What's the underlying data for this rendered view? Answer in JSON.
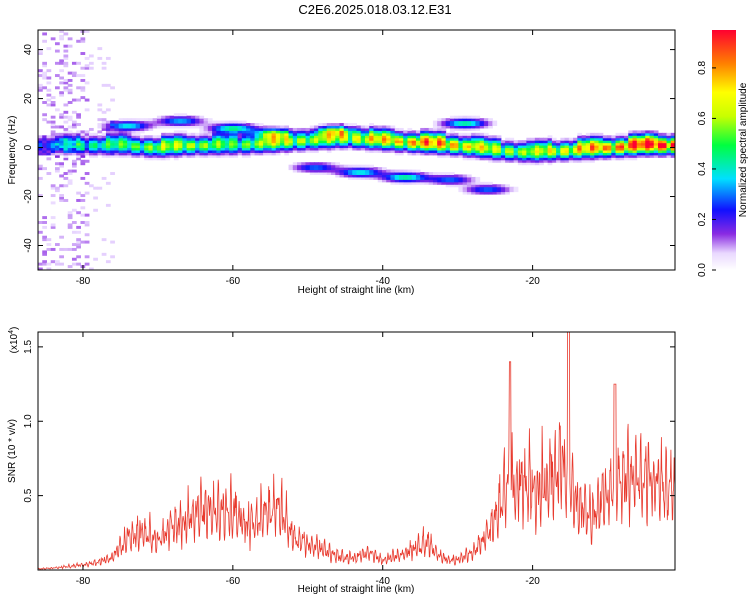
{
  "page_title": "C2E6.2025.018.03.12.E31",
  "chart_data": [
    {
      "type": "heatmap",
      "xlabel": "Height of straight line (km)",
      "ylabel": "Frequency (Hz)",
      "xlim": [
        -86,
        -1
      ],
      "ylim": [
        -50,
        48
      ],
      "xticks": [
        -80,
        -60,
        -40,
        -20
      ],
      "xtick_labels": [
        "-80",
        "-60",
        "-40",
        "-20"
      ],
      "yticks": [
        -40,
        -20,
        0,
        20,
        40
      ],
      "ytick_labels": [
        "-40",
        "-20",
        "0",
        "20",
        "40"
      ],
      "colorbar": {
        "label": "Normalized spectral amplitude",
        "range": [
          0,
          0.95
        ],
        "ticks": [
          0.0,
          0.2,
          0.4,
          0.6,
          0.8
        ],
        "tick_labels": [
          "0.0",
          "0.2",
          "0.4",
          "0.6",
          "0.8"
        ]
      },
      "ridge": {
        "x": [
          -85,
          -80,
          -75,
          -70,
          -65,
          -60,
          -55,
          -50,
          -45,
          -40,
          -35,
          -30,
          -25,
          -20,
          -15,
          -10,
          -5,
          -1
        ],
        "y": [
          1,
          1,
          1,
          0,
          1,
          1,
          2,
          3,
          4,
          3,
          2,
          1,
          -1,
          -2,
          -1,
          0,
          1,
          1
        ],
        "amplitude": [
          0.25,
          0.4,
          0.45,
          0.55,
          0.55,
          0.45,
          0.6,
          0.55,
          0.6,
          0.65,
          0.75,
          0.7,
          0.55,
          0.55,
          0.65,
          0.75,
          0.85,
          0.9
        ]
      },
      "features": [
        {
          "x": -74,
          "y": 9,
          "amp": 0.4
        },
        {
          "x": -67,
          "y": 11,
          "amp": 0.35
        },
        {
          "x": -60,
          "y": 8,
          "amp": 0.45
        },
        {
          "x": -55,
          "y": 6,
          "amp": 0.35
        },
        {
          "x": -49,
          "y": -8,
          "amp": 0.3
        },
        {
          "x": -43,
          "y": -10,
          "amp": 0.4
        },
        {
          "x": -37,
          "y": -12,
          "amp": 0.45
        },
        {
          "x": -31,
          "y": -13,
          "amp": 0.3
        },
        {
          "x": -26,
          "y": -17,
          "amp": 0.3
        },
        {
          "x": -29,
          "y": 10,
          "amp": 0.45
        },
        {
          "x": -46,
          "y": 7,
          "amp": 0.3
        }
      ]
    },
    {
      "type": "line",
      "xlabel": "Height of straight line (km)",
      "ylabel": "SNR (10 * v/v)",
      "y_multiplier": "(x10",
      "y_multiplier_exp": "4",
      "y_multiplier_close": ")",
      "xlim": [
        -86,
        -1
      ],
      "ylim": [
        0,
        1.6
      ],
      "xticks": [
        -80,
        -60,
        -40,
        -20
      ],
      "xtick_labels": [
        "-80",
        "-60",
        "-40",
        "-20"
      ],
      "yticks": [
        0.5,
        1.0,
        1.5
      ],
      "ytick_labels": [
        "0.5",
        "1.0",
        "1.5"
      ],
      "color": "#e83a2e",
      "envelope": {
        "x": [
          -86,
          -84,
          -80,
          -78,
          -76,
          -74,
          -72,
          -70,
          -68,
          -66,
          -64,
          -62,
          -60,
          -58,
          -56,
          -54,
          -52,
          -50,
          -48,
          -46,
          -44,
          -42,
          -40,
          -38,
          -36,
          -34,
          -32,
          -30,
          -28,
          -26,
          -24,
          -22,
          -20,
          -18,
          -16,
          -14,
          -12,
          -10,
          -8,
          -6,
          -4,
          -2,
          -1
        ],
        "y": [
          0.01,
          0.02,
          0.05,
          0.08,
          0.13,
          0.32,
          0.38,
          0.28,
          0.45,
          0.5,
          0.6,
          0.55,
          0.6,
          0.42,
          0.55,
          0.62,
          0.35,
          0.25,
          0.2,
          0.13,
          0.12,
          0.18,
          0.1,
          0.14,
          0.2,
          0.28,
          0.12,
          0.1,
          0.18,
          0.35,
          0.75,
          0.9,
          0.8,
          0.85,
          1.05,
          0.6,
          0.55,
          0.75,
          0.95,
          0.95,
          0.85,
          0.8,
          0.75
        ]
      }
    }
  ]
}
